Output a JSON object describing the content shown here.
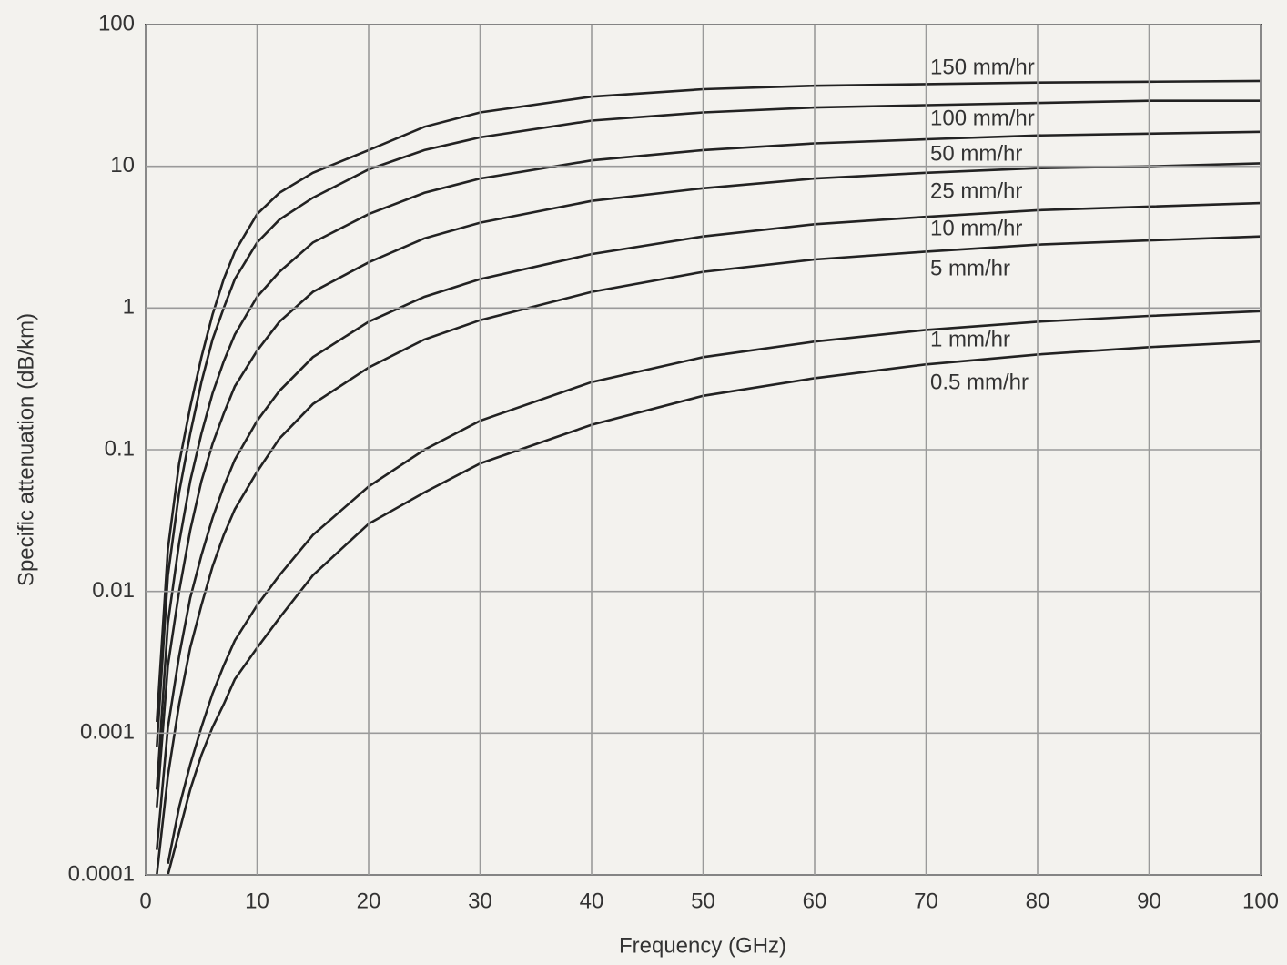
{
  "chart_data": {
    "type": "line",
    "xlabel": "Frequency (GHz)",
    "ylabel": "Specific attenuation (dB/km)",
    "x": [
      1,
      2,
      3,
      4,
      5,
      6,
      7,
      8,
      10,
      12,
      15,
      20,
      25,
      30,
      40,
      50,
      60,
      70,
      80,
      90,
      100
    ],
    "series": [
      {
        "name": "150 mm/hr",
        "color": "#222222",
        "values": [
          0.0012,
          0.02,
          0.08,
          0.2,
          0.45,
          0.9,
          1.6,
          2.5,
          4.6,
          6.5,
          9,
          13,
          19,
          24,
          31,
          35,
          37,
          38,
          39,
          39.5,
          40
        ]
      },
      {
        "name": "100 mm/hr",
        "color": "#222222",
        "values": [
          0.0008,
          0.013,
          0.05,
          0.13,
          0.3,
          0.6,
          1.0,
          1.6,
          2.9,
          4.2,
          6,
          9.5,
          13,
          16,
          21,
          24,
          26,
          27,
          28,
          29,
          29
        ]
      },
      {
        "name": "50 mm/hr",
        "color": "#222222",
        "values": [
          0.0004,
          0.006,
          0.022,
          0.06,
          0.13,
          0.25,
          0.42,
          0.65,
          1.2,
          1.8,
          2.9,
          4.6,
          6.5,
          8.2,
          11,
          13,
          14.5,
          15.5,
          16.5,
          17,
          17.5
        ]
      },
      {
        "name": "25 mm/hr",
        "color": "#222222",
        "values": [
          0.0003,
          0.003,
          0.01,
          0.027,
          0.06,
          0.11,
          0.18,
          0.28,
          0.5,
          0.8,
          1.3,
          2.1,
          3.1,
          4,
          5.7,
          7,
          8.2,
          9,
          9.7,
          10,
          10.5
        ]
      },
      {
        "name": "10 mm/hr",
        "color": "#222222",
        "values": [
          0.00015,
          0.0011,
          0.0035,
          0.009,
          0.018,
          0.033,
          0.055,
          0.085,
          0.16,
          0.26,
          0.45,
          0.8,
          1.2,
          1.6,
          2.4,
          3.2,
          3.9,
          4.4,
          4.9,
          5.2,
          5.5
        ]
      },
      {
        "name": "5 mm/hr",
        "color": "#222222",
        "values": [
          0.0001,
          0.0005,
          0.0016,
          0.004,
          0.008,
          0.015,
          0.025,
          0.038,
          0.07,
          0.12,
          0.21,
          0.38,
          0.6,
          0.82,
          1.3,
          1.8,
          2.2,
          2.5,
          2.8,
          3,
          3.2
        ]
      },
      {
        "name": "1 mm/hr",
        "color": "#222222",
        "values": [
          null,
          0.00012,
          0.0003,
          0.0006,
          0.0011,
          0.0019,
          0.003,
          0.0045,
          0.008,
          0.013,
          0.025,
          0.055,
          0.1,
          0.16,
          0.3,
          0.45,
          0.58,
          0.7,
          0.8,
          0.88,
          0.95
        ]
      },
      {
        "name": "0.5 mm/hr",
        "color": "#222222",
        "values": [
          null,
          0.0001,
          0.0002,
          0.0004,
          0.0007,
          0.0011,
          0.0016,
          0.0024,
          0.004,
          0.0065,
          0.013,
          0.03,
          0.05,
          0.08,
          0.15,
          0.24,
          0.32,
          0.4,
          0.47,
          0.53,
          0.58
        ]
      }
    ],
    "xlim": [
      0,
      100
    ],
    "xticks": [
      0,
      10,
      20,
      30,
      40,
      50,
      60,
      70,
      80,
      90,
      100
    ],
    "ylim": [
      0.0001,
      100
    ],
    "yticks": [
      0.0001,
      0.001,
      0.01,
      0.1,
      1,
      10,
      100
    ],
    "ylog": true,
    "grid": true
  }
}
